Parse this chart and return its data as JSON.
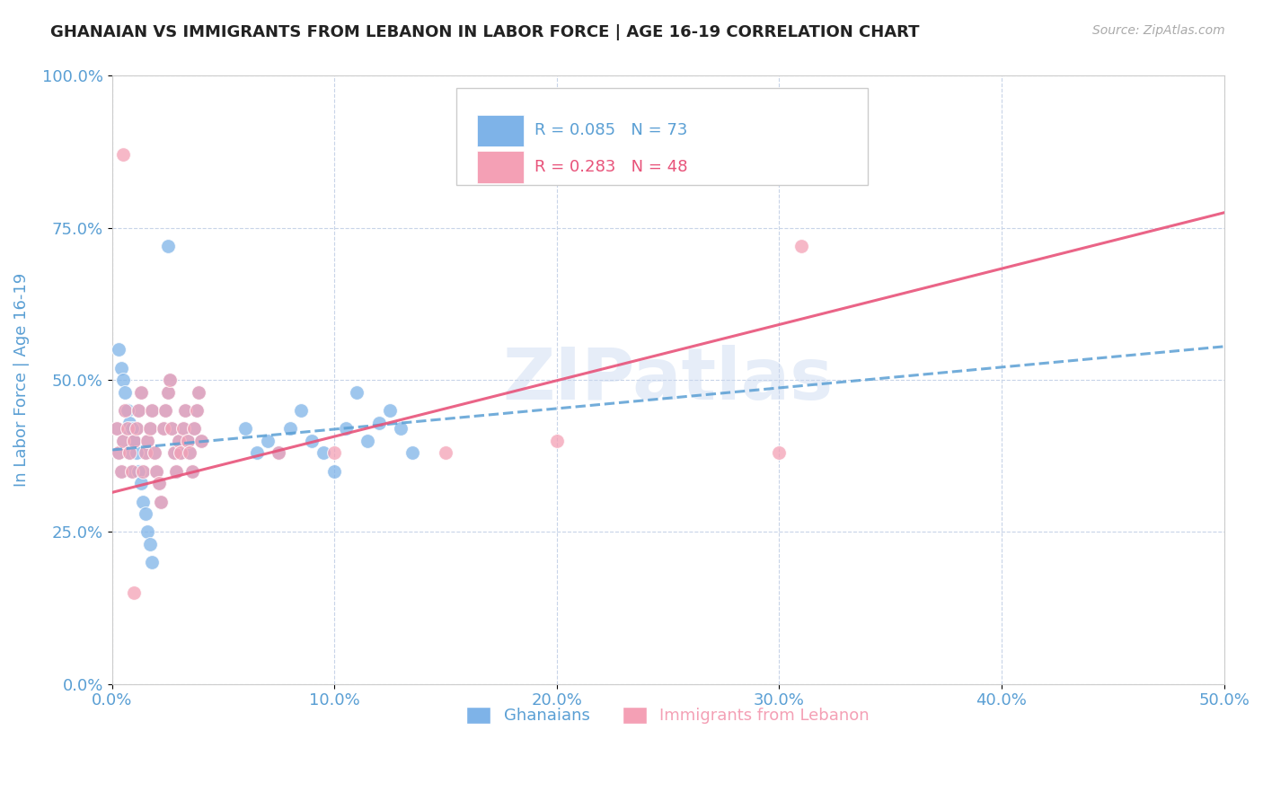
{
  "title": "GHANAIAN VS IMMIGRANTS FROM LEBANON IN LABOR FORCE | AGE 16-19 CORRELATION CHART",
  "source": "Source: ZipAtlas.com",
  "ylabel": "In Labor Force | Age 16-19",
  "xlim": [
    0.0,
    0.5
  ],
  "ylim": [
    0.0,
    1.0
  ],
  "ghanaian_color": "#7eb3e8",
  "lebanon_color": "#f4a0b5",
  "trend_blue_color": "#5a9fd4",
  "trend_pink_color": "#e8537a",
  "axis_color": "#5a9fd4",
  "grid_color": "#c8d4e8",
  "watermark": "ZIPatlas",
  "blue_trend_y0": 0.385,
  "blue_trend_y1": 0.555,
  "pink_trend_y0": 0.315,
  "pink_trend_y1": 0.775,
  "ghanaians_x": [
    0.002,
    0.003,
    0.004,
    0.005,
    0.006,
    0.007,
    0.008,
    0.009,
    0.01,
    0.011,
    0.012,
    0.013,
    0.014,
    0.015,
    0.016,
    0.017,
    0.018,
    0.019,
    0.02,
    0.021,
    0.022,
    0.023,
    0.024,
    0.025,
    0.026,
    0.027,
    0.028,
    0.029,
    0.03,
    0.031,
    0.032,
    0.033,
    0.034,
    0.035,
    0.036,
    0.037,
    0.038,
    0.039,
    0.04,
    0.003,
    0.004,
    0.005,
    0.006,
    0.007,
    0.008,
    0.009,
    0.01,
    0.011,
    0.012,
    0.013,
    0.014,
    0.015,
    0.016,
    0.017,
    0.018,
    0.06,
    0.065,
    0.07,
    0.075,
    0.08,
    0.085,
    0.09,
    0.095,
    0.1,
    0.105,
    0.11,
    0.115,
    0.12,
    0.125,
    0.13,
    0.135,
    0.025
  ],
  "ghanaians_y": [
    0.42,
    0.38,
    0.35,
    0.4,
    0.45,
    0.42,
    0.38,
    0.35,
    0.4,
    0.42,
    0.45,
    0.48,
    0.35,
    0.38,
    0.4,
    0.42,
    0.45,
    0.38,
    0.35,
    0.33,
    0.3,
    0.42,
    0.45,
    0.48,
    0.5,
    0.42,
    0.38,
    0.35,
    0.4,
    0.38,
    0.42,
    0.45,
    0.4,
    0.38,
    0.35,
    0.42,
    0.45,
    0.48,
    0.4,
    0.55,
    0.52,
    0.5,
    0.48,
    0.45,
    0.43,
    0.42,
    0.4,
    0.38,
    0.35,
    0.33,
    0.3,
    0.28,
    0.25,
    0.23,
    0.2,
    0.42,
    0.38,
    0.4,
    0.38,
    0.42,
    0.45,
    0.4,
    0.38,
    0.35,
    0.42,
    0.48,
    0.4,
    0.43,
    0.45,
    0.42,
    0.38,
    0.72
  ],
  "lebanon_x": [
    0.002,
    0.003,
    0.004,
    0.005,
    0.006,
    0.007,
    0.008,
    0.009,
    0.01,
    0.011,
    0.012,
    0.013,
    0.014,
    0.015,
    0.016,
    0.017,
    0.018,
    0.019,
    0.02,
    0.021,
    0.022,
    0.023,
    0.024,
    0.025,
    0.026,
    0.027,
    0.028,
    0.029,
    0.03,
    0.031,
    0.032,
    0.033,
    0.034,
    0.035,
    0.036,
    0.037,
    0.038,
    0.039,
    0.04,
    0.075,
    0.1,
    0.15,
    0.2,
    0.3,
    0.31,
    0.005,
    0.01
  ],
  "lebanon_y": [
    0.42,
    0.38,
    0.35,
    0.4,
    0.45,
    0.42,
    0.38,
    0.35,
    0.4,
    0.42,
    0.45,
    0.48,
    0.35,
    0.38,
    0.4,
    0.42,
    0.45,
    0.38,
    0.35,
    0.33,
    0.3,
    0.42,
    0.45,
    0.48,
    0.5,
    0.42,
    0.38,
    0.35,
    0.4,
    0.38,
    0.42,
    0.45,
    0.4,
    0.38,
    0.35,
    0.42,
    0.45,
    0.48,
    0.4,
    0.38,
    0.38,
    0.38,
    0.4,
    0.38,
    0.72,
    0.87,
    0.15
  ]
}
